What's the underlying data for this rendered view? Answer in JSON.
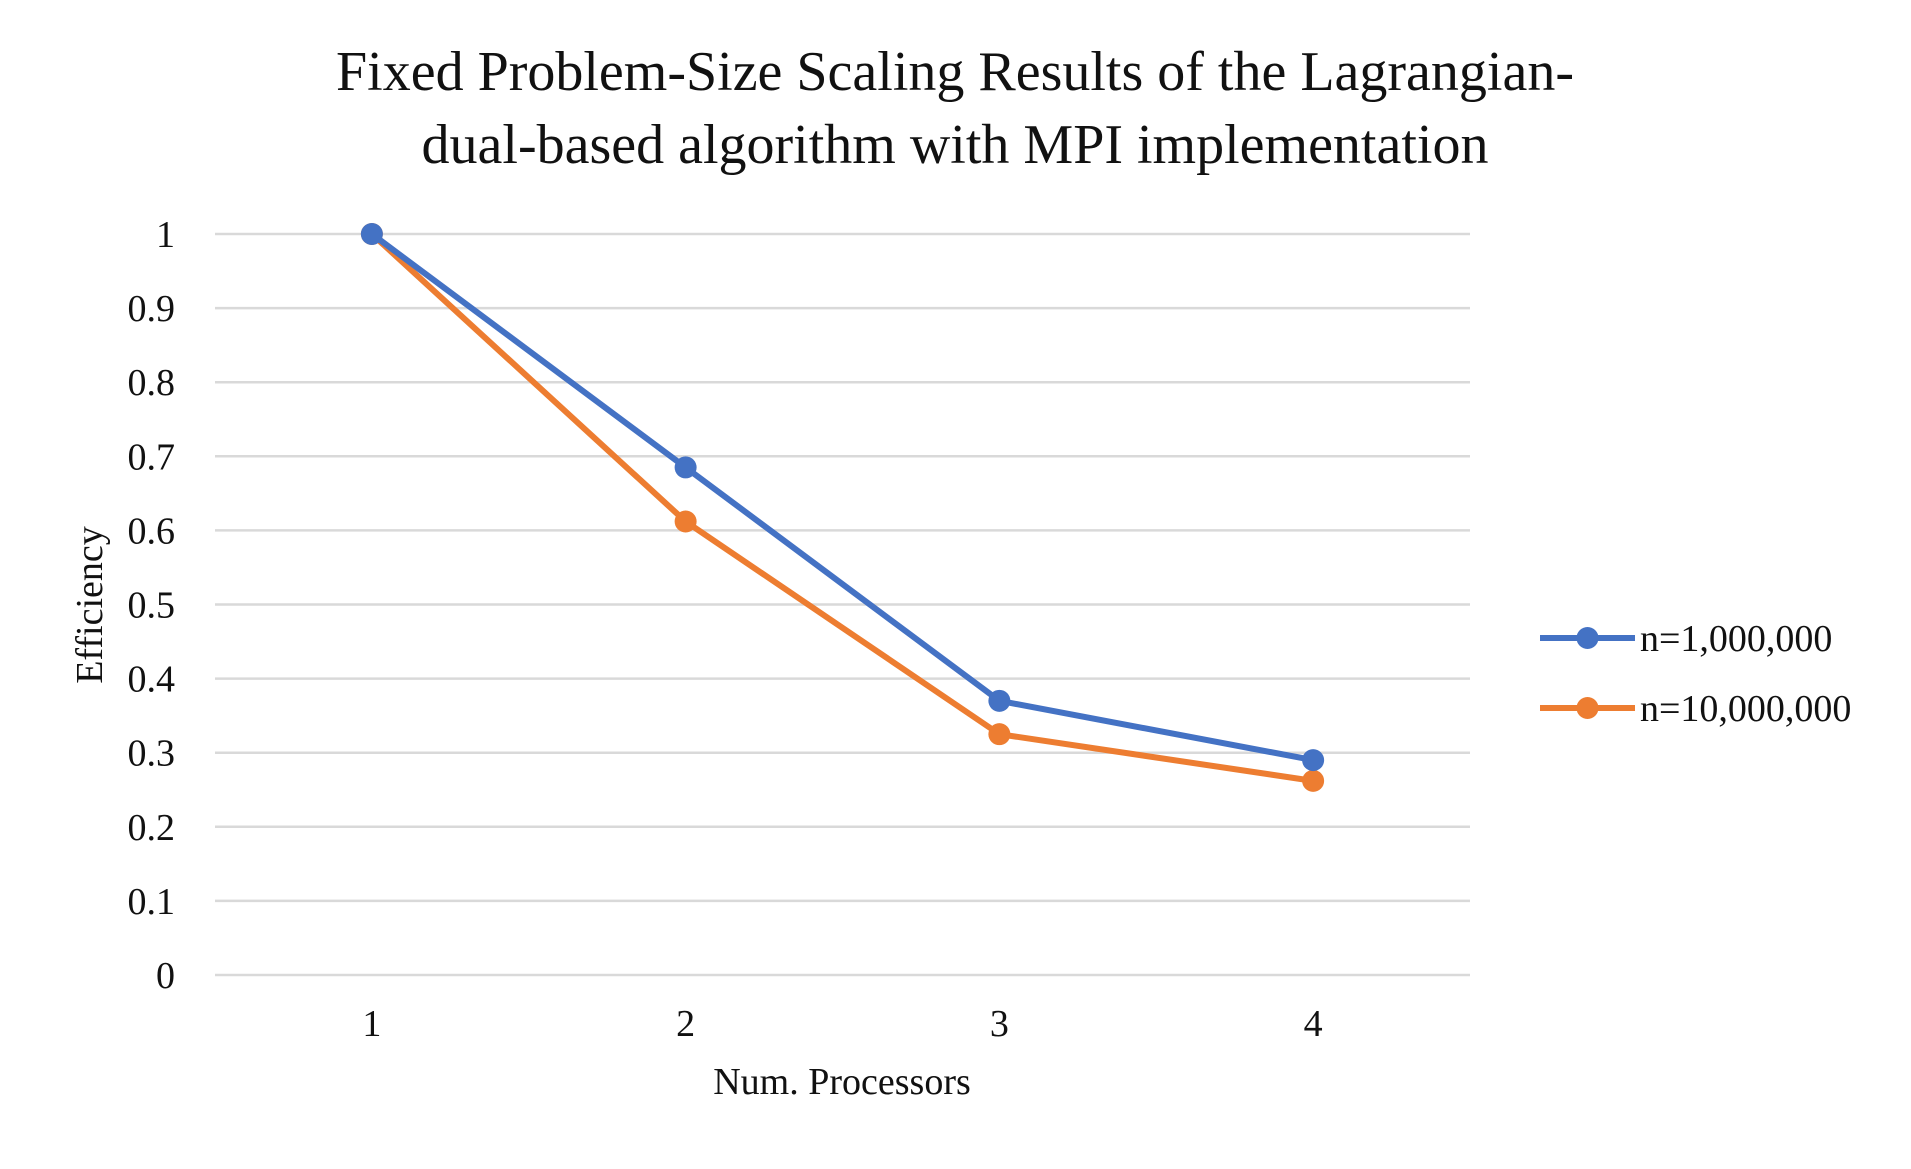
{
  "chart_data": {
    "type": "line",
    "title": "Fixed Problem-Size Scaling Results of the Lagrangian-dual-based algorithm with MPI implementation",
    "title_lines": [
      "Fixed Problem-Size Scaling Results of the Lagrangian-",
      "dual-based algorithm with MPI implementation"
    ],
    "xlabel": "Num. Processors",
    "ylabel": "Efficiency",
    "categories": [
      "1",
      "2",
      "3",
      "4"
    ],
    "ylim": [
      0,
      1
    ],
    "yticks": [
      "0",
      "0.1",
      "0.2",
      "0.3",
      "0.4",
      "0.5",
      "0.6",
      "0.7",
      "0.8",
      "0.9",
      "1"
    ],
    "grid": true,
    "legend_position": "right",
    "series": [
      {
        "name": "n=1,000,000",
        "color": "#4472C4",
        "values": [
          1.0,
          0.685,
          0.37,
          0.29
        ]
      },
      {
        "name": "n=10,000,000",
        "color": "#ED7D31",
        "values": [
          1.0,
          0.612,
          0.325,
          0.262
        ]
      }
    ]
  }
}
